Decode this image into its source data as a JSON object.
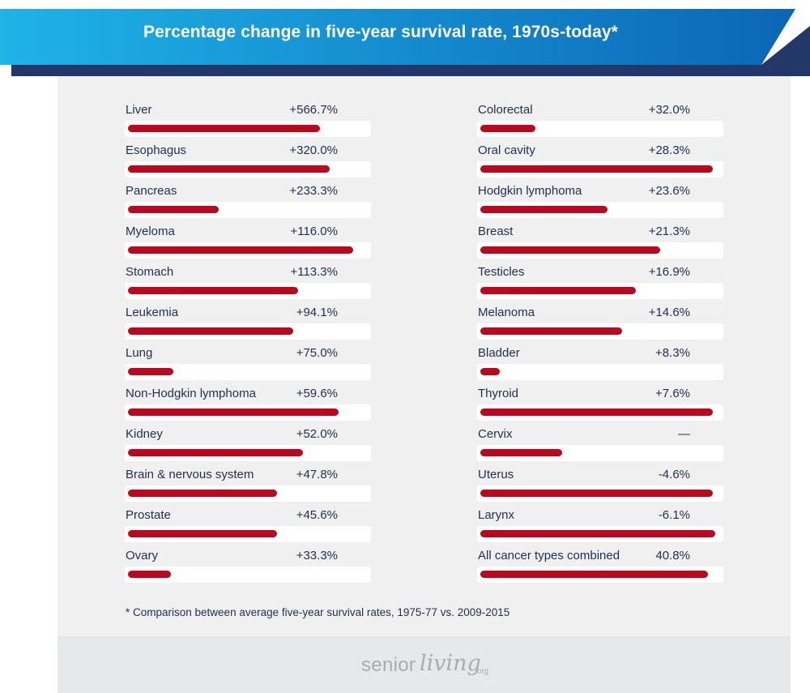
{
  "header": {
    "title": "Percentage change in five-year survival rate, 1970s-today*",
    "colors": {
      "start": "#1fb3e8",
      "end": "#0b66b6",
      "shadow": "#243769"
    }
  },
  "chart_data": {
    "type": "bar",
    "bar_color": "#b8091f",
    "categories": [
      "Liver",
      "Esophagus",
      "Pancreas",
      "Myeloma",
      "Stomach",
      "Leukemia",
      "Lung",
      "Non-Hodgkin lymphoma",
      "Kidney",
      "Brain & nervous system",
      "Prostate",
      "Ovary",
      "Colorectal",
      "Oral cavity",
      "Hodgkin lymphoma",
      "Breast",
      "Testicles",
      "Melanoma",
      "Bladder",
      "Thyroid",
      "Cervix",
      "Uterus",
      "Larynx",
      "All cancer types combined"
    ],
    "value_labels": [
      "+566.7%",
      "+320.0%",
      "+233.3%",
      "+116.0%",
      "+113.3%",
      "+94.1%",
      "+75.0%",
      "+59.6%",
      "+52.0%",
      "+47.8%",
      "+45.6%",
      "+33.3%",
      "+32.0%",
      "+28.3%",
      "+23.6%",
      "+21.3%",
      "+16.9%",
      "+14.6%",
      "+8.3%",
      "+7.6%",
      "—",
      "-4.6%",
      "-6.1%",
      "40.8%"
    ],
    "bar_fill_fraction": [
      0.8,
      0.84,
      0.38,
      0.94,
      0.71,
      0.69,
      0.19,
      0.88,
      0.73,
      0.62,
      0.62,
      0.18,
      0.23,
      0.97,
      0.53,
      0.75,
      0.65,
      0.59,
      0.08,
      0.97,
      0.34,
      0.97,
      0.98,
      0.95
    ]
  },
  "footnote": "* Comparison between average five-year survival rates, 1975-77 vs. 2009-2015",
  "logo": {
    "part1": "senior",
    "part2": "living",
    "part3": ".org"
  }
}
